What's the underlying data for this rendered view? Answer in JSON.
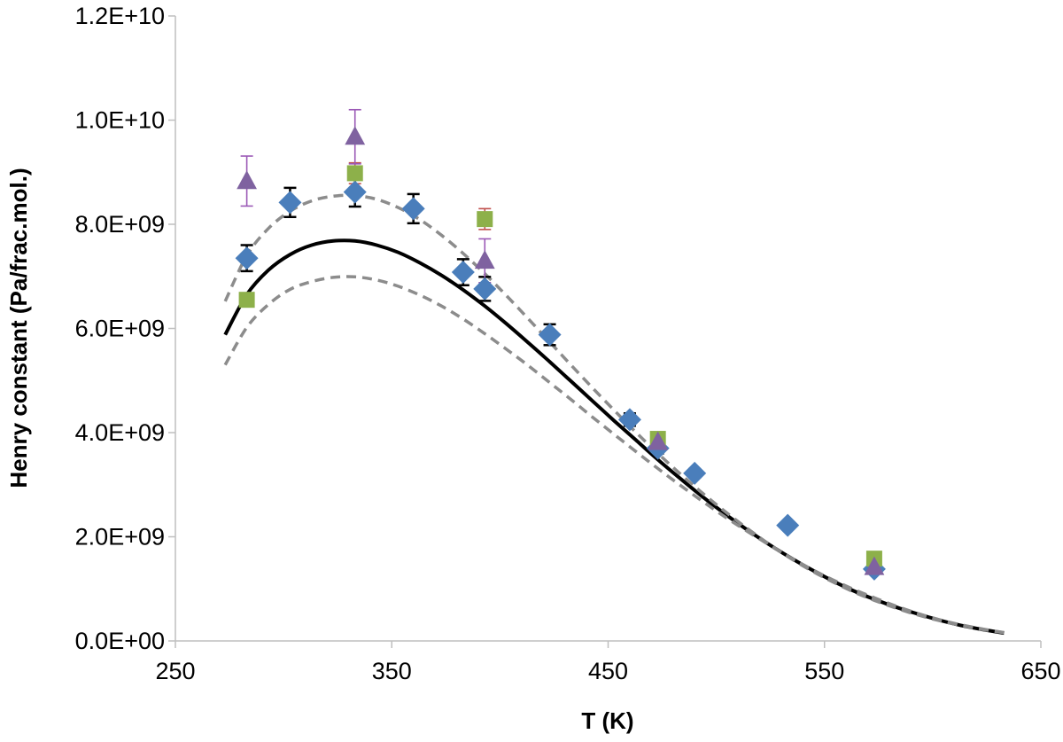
{
  "chart_data": {
    "type": "scatter",
    "title": "",
    "xlabel": "T (K)",
    "ylabel": "Henry constant (Pa/frac.mol.)",
    "xlim": [
      250,
      650
    ],
    "ylim": [
      0,
      12000000000
    ],
    "xticks": [
      250,
      350,
      450,
      550,
      650
    ],
    "xtick_labels": [
      "250",
      "350",
      "450",
      "550",
      "650"
    ],
    "yticks": [
      0,
      2000000000,
      4000000000,
      6000000000,
      8000000000,
      10000000000,
      12000000000
    ],
    "ytick_labels": [
      "0.0E+00",
      "2.0E+09",
      "4.0E+09",
      "6.0E+09",
      "8.0E+09",
      "1.0E+10",
      "1.2E+10"
    ],
    "grid": false,
    "legend": "none",
    "series": [
      {
        "marker": "diamond",
        "color": "#4a7ebb",
        "error_color": "#000000",
        "points": [
          {
            "x": 283,
            "y": 7350000000,
            "err": 250000000
          },
          {
            "x": 303,
            "y": 8420000000,
            "err": 280000000
          },
          {
            "x": 333,
            "y": 8620000000,
            "err": 280000000
          },
          {
            "x": 360,
            "y": 8300000000,
            "err": 280000000
          },
          {
            "x": 383,
            "y": 7080000000,
            "err": 250000000
          },
          {
            "x": 393,
            "y": 6760000000,
            "err": 230000000
          },
          {
            "x": 423,
            "y": 5880000000,
            "err": 200000000
          },
          {
            "x": 460,
            "y": 4250000000,
            "err": 120000000
          },
          {
            "x": 473,
            "y": 3700000000,
            "err": 100000000
          },
          {
            "x": 490,
            "y": 3220000000,
            "err": 80000000
          },
          {
            "x": 533,
            "y": 2220000000,
            "err": 60000000
          },
          {
            "x": 573,
            "y": 1380000000,
            "err": 50000000
          }
        ]
      },
      {
        "marker": "square",
        "color": "#8db04a",
        "error_color": "#c0504d",
        "points": [
          {
            "x": 283,
            "y": 6550000000,
            "err": 120000000
          },
          {
            "x": 333,
            "y": 8980000000,
            "err": 200000000
          },
          {
            "x": 393,
            "y": 8100000000,
            "err": 200000000
          },
          {
            "x": 473,
            "y": 3880000000,
            "err": 60000000
          },
          {
            "x": 573,
            "y": 1580000000,
            "err": 40000000
          }
        ]
      },
      {
        "marker": "triangle",
        "color": "#7f62a0",
        "error_color": "#9b59b6",
        "points": [
          {
            "x": 283,
            "y": 8830000000,
            "err": 480000000
          },
          {
            "x": 333,
            "y": 9680000000,
            "err": 520000000
          },
          {
            "x": 393,
            "y": 7300000000,
            "err": 420000000
          },
          {
            "x": 473,
            "y": 3820000000,
            "err": 100000000
          },
          {
            "x": 573,
            "y": 1420000000,
            "err": 60000000
          }
        ]
      }
    ],
    "curves": [
      {
        "style": "solid",
        "color": "#000000",
        "x": [
          273,
          283,
          293,
          303,
          313,
          323,
          333,
          343,
          353,
          363,
          373,
          383,
          393,
          403,
          413,
          423,
          433,
          443,
          453,
          463,
          473,
          483,
          493,
          503,
          513,
          523,
          533,
          543,
          553,
          563,
          573,
          583,
          593,
          603,
          613,
          623,
          633
        ],
        "y": [
          5880000000,
          6650000000,
          7120000000,
          7420000000,
          7600000000,
          7680000000,
          7680000000,
          7600000000,
          7460000000,
          7260000000,
          7020000000,
          6740000000,
          6430000000,
          6090000000,
          5730000000,
          5360000000,
          4980000000,
          4600000000,
          4220000000,
          3850000000,
          3480000000,
          3130000000,
          2790000000,
          2470000000,
          2170000000,
          1890000000,
          1630000000,
          1390000000,
          1170000000,
          970000000,
          800000000,
          650000000,
          520000000,
          400000000,
          300000000,
          220000000,
          150000000
        ]
      },
      {
        "style": "dashed",
        "color": "#8c8c8c",
        "x": [
          273,
          283,
          293,
          303,
          313,
          323,
          333,
          343,
          353,
          363,
          373,
          383,
          393,
          403,
          413,
          423,
          433,
          443,
          453,
          463,
          473,
          483,
          493,
          503,
          513,
          523,
          533,
          543,
          553,
          563,
          573,
          583,
          593,
          603,
          613,
          623,
          633
        ],
        "y": [
          6520000000,
          7400000000,
          7920000000,
          8250000000,
          8450000000,
          8540000000,
          8550000000,
          8480000000,
          8320000000,
          8090000000,
          7790000000,
          7440000000,
          7050000000,
          6630000000,
          6190000000,
          5740000000,
          5290000000,
          4850000000,
          4420000000,
          4000000000,
          3600000000,
          3220000000,
          2860000000,
          2520000000,
          2200000000,
          1900000000,
          1620000000,
          1370000000,
          1150000000,
          950000000,
          780000000,
          630000000,
          500000000,
          390000000,
          300000000,
          220000000,
          160000000
        ]
      },
      {
        "style": "dashed",
        "color": "#8c8c8c",
        "x": [
          273,
          283,
          293,
          303,
          313,
          323,
          333,
          343,
          353,
          363,
          373,
          383,
          393,
          403,
          413,
          423,
          433,
          443,
          453,
          463,
          473,
          483,
          493,
          503,
          513,
          523,
          533,
          543,
          553,
          563,
          573,
          583,
          593,
          603,
          613,
          623,
          633
        ],
        "y": [
          5300000000,
          6020000000,
          6460000000,
          6750000000,
          6900000000,
          6980000000,
          6990000000,
          6930000000,
          6810000000,
          6640000000,
          6430000000,
          6180000000,
          5900000000,
          5600000000,
          5290000000,
          4960000000,
          4630000000,
          4290000000,
          3960000000,
          3630000000,
          3310000000,
          3000000000,
          2700000000,
          2410000000,
          2140000000,
          1880000000,
          1630000000,
          1400000000,
          1190000000,
          1000000000,
          830000000,
          670000000,
          530000000,
          410000000,
          310000000,
          230000000,
          160000000
        ]
      }
    ]
  }
}
